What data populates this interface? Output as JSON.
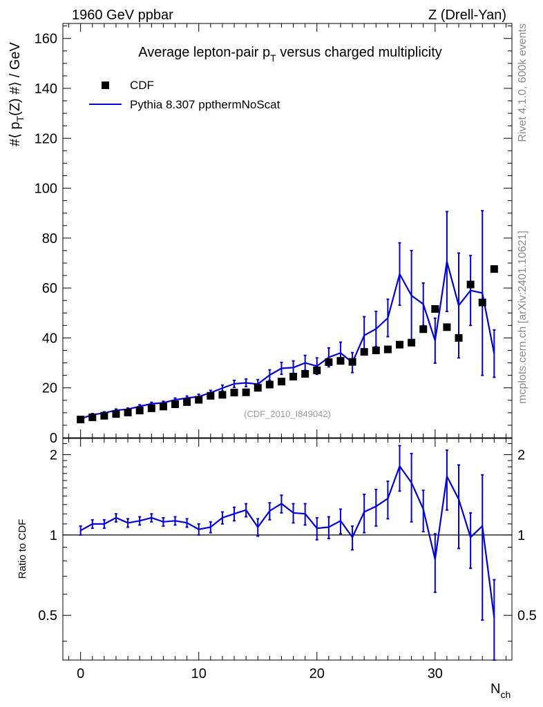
{
  "header": {
    "left": "1960 GeV ppbar",
    "right": "Z (Drell-Yan)"
  },
  "side_labels": {
    "rivet": "Rivet 4.1.0,  600k events",
    "mcplots": "mcplots.cern.ch [arXiv:2401.10621]"
  },
  "chart_data": {
    "type": "scatter",
    "title_main": "Average lepton-pair p",
    "title_sub": "T",
    "title_tail": " versus charged multiplicity",
    "analysis_label": "(CDF_2010_I849042)",
    "xlabel_main": "N",
    "xlabel_sub": "ch",
    "ylabel": "#⟨ p_T(Z) #⟩ / GeV",
    "ylabel_parts": [
      "#⟨ p",
      "T",
      "(Z) #⟩ / GeV"
    ],
    "ratio_ylabel": "Ratio to CDF",
    "xlim": [
      -1.5,
      36.5
    ],
    "ylim": [
      0,
      166
    ],
    "ratio_ylim": [
      0.34,
      2.3
    ],
    "x_ticks": [
      0,
      10,
      20,
      30
    ],
    "y_ticks": [
      0,
      20,
      40,
      60,
      80,
      100,
      120,
      140,
      160
    ],
    "ratio_ticks": [
      0.5,
      1,
      2
    ],
    "ratio_tick_labels": [
      "0.5",
      "1",
      "2"
    ],
    "legend": [
      {
        "name": "CDF",
        "marker": "square",
        "color": "#000000"
      },
      {
        "name": "Pythia 8.307 ppthermNoScat",
        "marker": "line",
        "color": "#0000dd"
      }
    ],
    "series": [
      {
        "name": "CDF",
        "x": [
          0,
          1,
          2,
          3,
          4,
          5,
          6,
          7,
          8,
          9,
          10,
          11,
          12,
          13,
          14,
          15,
          16,
          17,
          18,
          19,
          20,
          21,
          22,
          23,
          24,
          25,
          26,
          27,
          28,
          29,
          30,
          31,
          32,
          33,
          34,
          35
        ],
        "values": [
          7.3,
          8.2,
          8.8,
          9.5,
          10.1,
          10.9,
          11.8,
          12.5,
          13.4,
          14.3,
          15.2,
          16.8,
          17.2,
          18.1,
          18.2,
          20.0,
          21.3,
          22.5,
          24.5,
          25.6,
          27.0,
          30.3,
          30.8,
          30.4,
          34.4,
          35.0,
          35.4,
          37.3,
          38.1,
          43.5,
          51.6,
          44.3,
          40.0,
          61.4,
          54.2,
          67.6
        ]
      },
      {
        "name": "Pythia 8.307 ppthermNoScat",
        "x": [
          0,
          1,
          2,
          3,
          4,
          5,
          6,
          7,
          8,
          9,
          10,
          11,
          12,
          13,
          14,
          15,
          16,
          17,
          18,
          19,
          20,
          21,
          22,
          23,
          24,
          25,
          26,
          27,
          28,
          29,
          30,
          31,
          32,
          33,
          34,
          35
        ],
        "values": [
          7.6,
          9.2,
          9.9,
          11.0,
          11.4,
          12.6,
          13.6,
          14.0,
          15.2,
          15.9,
          16.5,
          18.0,
          19.9,
          21.6,
          22.0,
          21.5,
          25.1,
          27.8,
          28.1,
          30.0,
          28.7,
          32.2,
          34.0,
          30.1,
          41.0,
          43.6,
          48.0,
          65.6,
          57.0,
          53.5,
          38.9,
          70.6,
          53.0,
          59.0,
          58.0,
          33.7
        ],
        "errors": [
          0.4,
          0.5,
          0.5,
          0.5,
          0.5,
          0.6,
          0.6,
          0.6,
          0.7,
          0.8,
          0.9,
          1.0,
          1.2,
          1.4,
          1.5,
          1.8,
          2.1,
          2.4,
          2.7,
          3.0,
          3.3,
          3.8,
          4.3,
          4.0,
          7.5,
          7.0,
          7.5,
          12.5,
          18.0,
          8.5,
          9.0,
          20.0,
          21.0,
          14.0,
          33.0,
          9.5
        ]
      }
    ],
    "ratio": {
      "reference": 1,
      "name": "Pythia 8.307 ppthermNoScat / CDF",
      "x": [
        0,
        1,
        2,
        3,
        4,
        5,
        6,
        7,
        8,
        9,
        10,
        11,
        12,
        13,
        14,
        15,
        16,
        17,
        18,
        19,
        20,
        21,
        22,
        23,
        24,
        25,
        26,
        27,
        28,
        29,
        30,
        31,
        32,
        33,
        34,
        35
      ],
      "values": [
        1.04,
        1.1,
        1.1,
        1.16,
        1.11,
        1.13,
        1.16,
        1.12,
        1.13,
        1.11,
        1.05,
        1.07,
        1.16,
        1.2,
        1.24,
        1.07,
        1.23,
        1.31,
        1.21,
        1.2,
        1.06,
        1.07,
        1.13,
        0.98,
        1.22,
        1.28,
        1.37,
        1.81,
        1.57,
        1.25,
        0.81,
        1.66,
        1.36,
        0.98,
        1.08,
        0.49
      ],
      "errors": [
        0.04,
        0.04,
        0.04,
        0.04,
        0.04,
        0.04,
        0.04,
        0.04,
        0.04,
        0.04,
        0.05,
        0.05,
        0.06,
        0.07,
        0.07,
        0.08,
        0.09,
        0.1,
        0.1,
        0.11,
        0.1,
        0.1,
        0.12,
        0.1,
        0.2,
        0.2,
        0.22,
        0.35,
        0.45,
        0.22,
        0.2,
        0.42,
        0.47,
        0.23,
        0.6,
        0.19
      ]
    }
  }
}
